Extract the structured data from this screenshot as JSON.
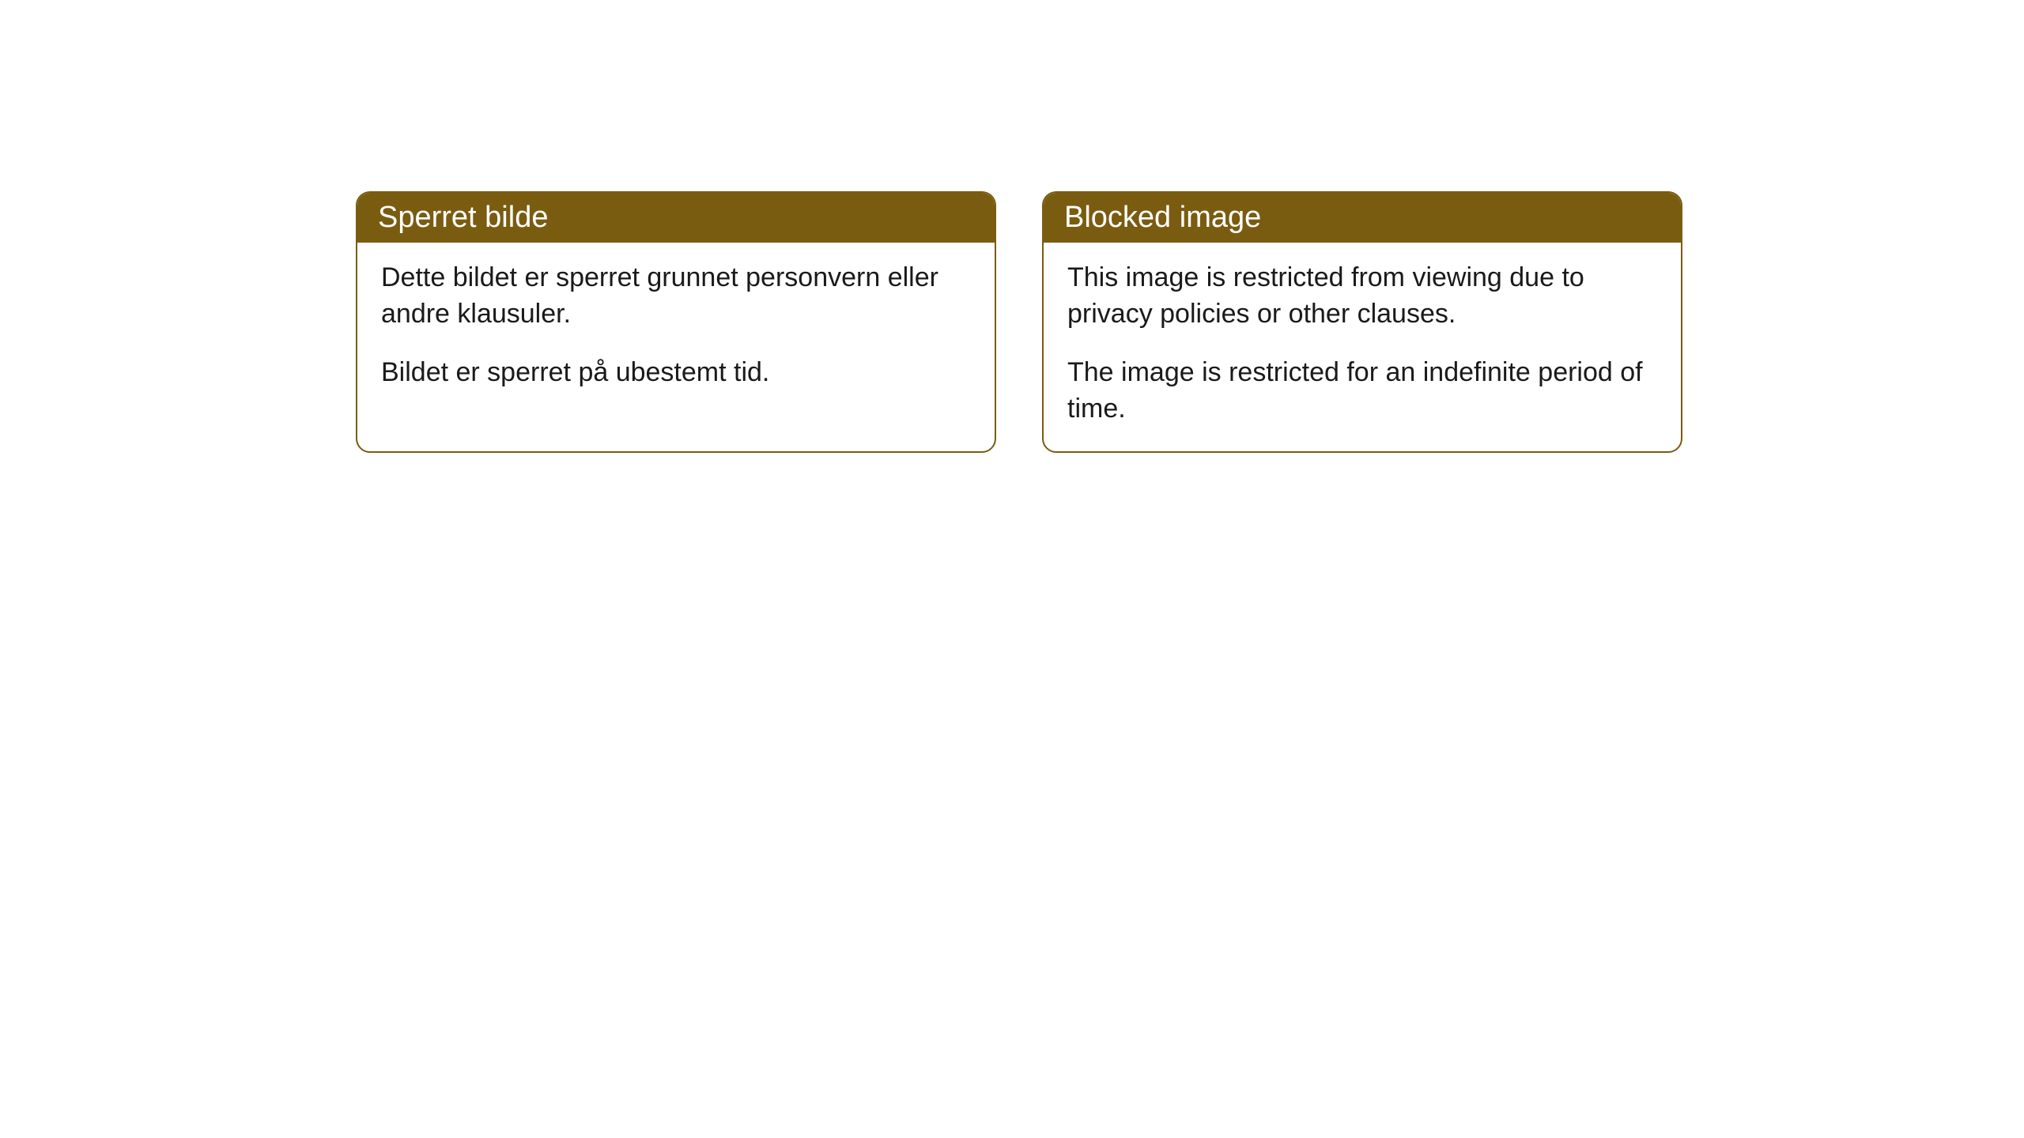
{
  "cards": [
    {
      "title": "Sperret bilde",
      "paragraph1": "Dette bildet er sperret grunnet personvern eller andre klausuler.",
      "paragraph2": "Bildet er sperret på ubestemt tid."
    },
    {
      "title": "Blocked image",
      "paragraph1": "This image is restricted from viewing due to privacy policies or other clauses.",
      "paragraph2": "The image is restricted for an indefinite period of time."
    }
  ],
  "style": {
    "header_background": "#7a5c11",
    "header_text_color": "#ffffff",
    "border_color": "#7a5c11",
    "body_background": "#ffffff",
    "body_text_color": "#1a1a1a",
    "border_radius": 18,
    "title_fontsize": 38,
    "body_fontsize": 34
  }
}
